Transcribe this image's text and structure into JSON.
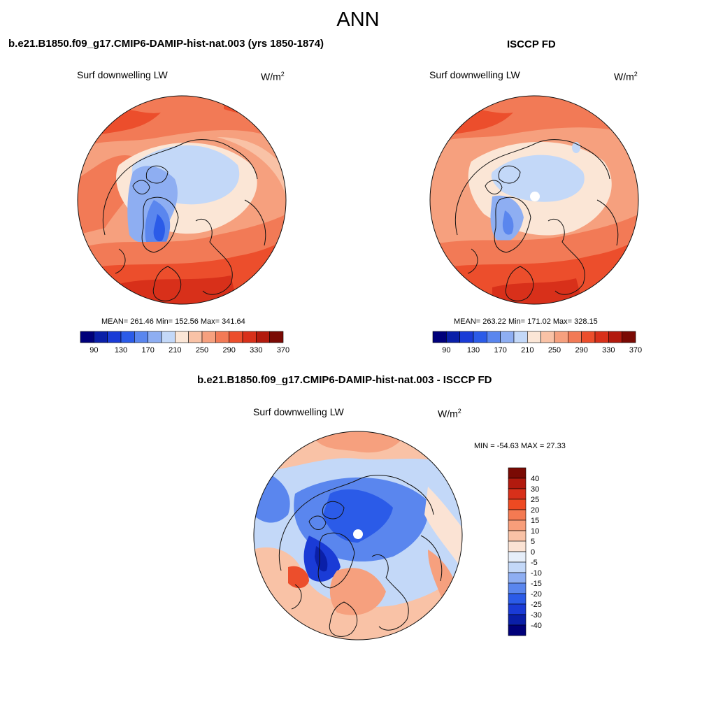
{
  "title": "ANN",
  "panels": [
    {
      "title": "b.e21.B1850.f09_g17.CMIP6-DAMIP-hist-nat.003 (yrs 1850-1874)",
      "variable": "Surf downwelling LW",
      "units_base": "W/m",
      "units_exp": "2",
      "stats": "MEAN= 261.46  Min= 152.56  Max= 341.64"
    },
    {
      "title": "ISCCP FD",
      "variable": "Surf downwelling LW",
      "units_base": "W/m",
      "units_exp": "2",
      "stats": "MEAN= 263.22  Min= 171.02  Max= 328.15"
    },
    {
      "title": "b.e21.B1850.f09_g17.CMIP6-DAMIP-hist-nat.003 - ISCCP FD",
      "variable": "Surf downwelling LW",
      "units_base": "W/m",
      "units_exp": "2",
      "stats": "MIN = -54.63 MAX =  27.33"
    }
  ],
  "colorbar_abs": {
    "colors": [
      "#00007a",
      "#0a1fa8",
      "#1a3bd6",
      "#2b5be8",
      "#5a86ee",
      "#8eaef2",
      "#c3d8f8",
      "#fbe6d6",
      "#f9c2a6",
      "#f6a07e",
      "#f27a56",
      "#ec4e2c",
      "#d8301a",
      "#b21a0e",
      "#7a0a04"
    ],
    "tick_labels": [
      "90",
      "130",
      "170",
      "210",
      "250",
      "290",
      "330",
      "370"
    ]
  },
  "colorbar_diff": {
    "colors_top_to_bottom": [
      "#7a0a04",
      "#b21a0e",
      "#d8301a",
      "#ee4a22",
      "#f47a52",
      "#f89e7a",
      "#f9c2a6",
      "#fbe3d4",
      "#e6eef9",
      "#c3d8f8",
      "#8eaef2",
      "#5a86ee",
      "#2b5be8",
      "#1a3bd6",
      "#0a1fa8",
      "#00007a"
    ],
    "tick_labels": [
      "40",
      "30",
      "25",
      "20",
      "15",
      "10",
      "5",
      "0",
      "-5",
      "-10",
      "-15",
      "-20",
      "-25",
      "-30",
      "-40"
    ]
  }
}
